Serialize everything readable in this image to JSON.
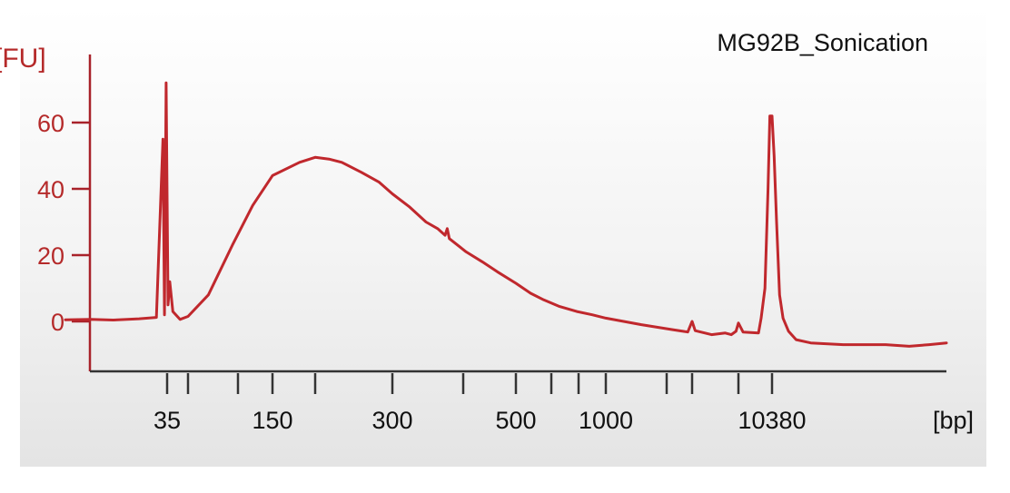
{
  "chart_data": {
    "type": "line",
    "title": "MG92B_Sonication",
    "xlabel": "[bp]",
    "ylabel": "[FU]",
    "x_tick_labels": [
      "35",
      "150",
      "300",
      "500",
      "1000",
      "10380"
    ],
    "y_tick_labels": [
      "0",
      "20",
      "40",
      "60"
    ],
    "ylim": [
      -15,
      78
    ],
    "grid": false,
    "colors": {
      "line": "#c0282d",
      "axis": "#a8222a",
      "tick_text": "#b52a2a",
      "text": "#111111"
    },
    "series": [
      {
        "values": [
          [
            20,
            0.5
          ],
          [
            23,
            0.6
          ],
          [
            26,
            0.4
          ],
          [
            30,
            0.8
          ],
          [
            33,
            1.2
          ],
          [
            34.2,
            55
          ],
          [
            34.5,
            2
          ],
          [
            34.8,
            72
          ],
          [
            35.2,
            5
          ],
          [
            35.6,
            12
          ],
          [
            36.3,
            3
          ],
          [
            38,
            0.6
          ],
          [
            40,
            1.5
          ],
          [
            55,
            8
          ],
          [
            80,
            23
          ],
          [
            110,
            35
          ],
          [
            150,
            44
          ],
          [
            180,
            48
          ],
          [
            200,
            49.5
          ],
          [
            215,
            49
          ],
          [
            230,
            48
          ],
          [
            255,
            45
          ],
          [
            280,
            42
          ],
          [
            300,
            38.5
          ],
          [
            320,
            34.5
          ],
          [
            340,
            30
          ],
          [
            355,
            28
          ],
          [
            365,
            26
          ],
          [
            368,
            28
          ],
          [
            371,
            25
          ],
          [
            400,
            21
          ],
          [
            430,
            18
          ],
          [
            460,
            15
          ],
          [
            500,
            11.5
          ],
          [
            560,
            8.5
          ],
          [
            620,
            6.5
          ],
          [
            700,
            4.5
          ],
          [
            800,
            3
          ],
          [
            900,
            2
          ],
          [
            1000,
            1
          ],
          [
            1500,
            -1
          ],
          [
            2200,
            -2.5
          ],
          [
            2600,
            -3
          ],
          [
            2800,
            -3.2
          ],
          [
            3000,
            0
          ],
          [
            3200,
            -2.8
          ],
          [
            4500,
            -4
          ],
          [
            6000,
            -3.5
          ],
          [
            6800,
            -4
          ],
          [
            7500,
            -3
          ],
          [
            7900,
            -0.5
          ],
          [
            8200,
            -3.2
          ],
          [
            9300,
            -3.5
          ],
          [
            9500,
            1
          ],
          [
            9800,
            10
          ],
          [
            10050,
            40
          ],
          [
            10200,
            62
          ],
          [
            10380,
            62
          ],
          [
            10550,
            50
          ],
          [
            10750,
            30
          ],
          [
            11000,
            8
          ],
          [
            11300,
            1
          ],
          [
            11800,
            -3
          ],
          [
            12500,
            -5.5
          ],
          [
            14000,
            -6.5
          ],
          [
            18000,
            -7
          ],
          [
            25000,
            -7
          ],
          [
            30000,
            -7.5
          ],
          [
            35000,
            -7
          ],
          [
            40000,
            -6.5
          ]
        ]
      }
    ]
  }
}
